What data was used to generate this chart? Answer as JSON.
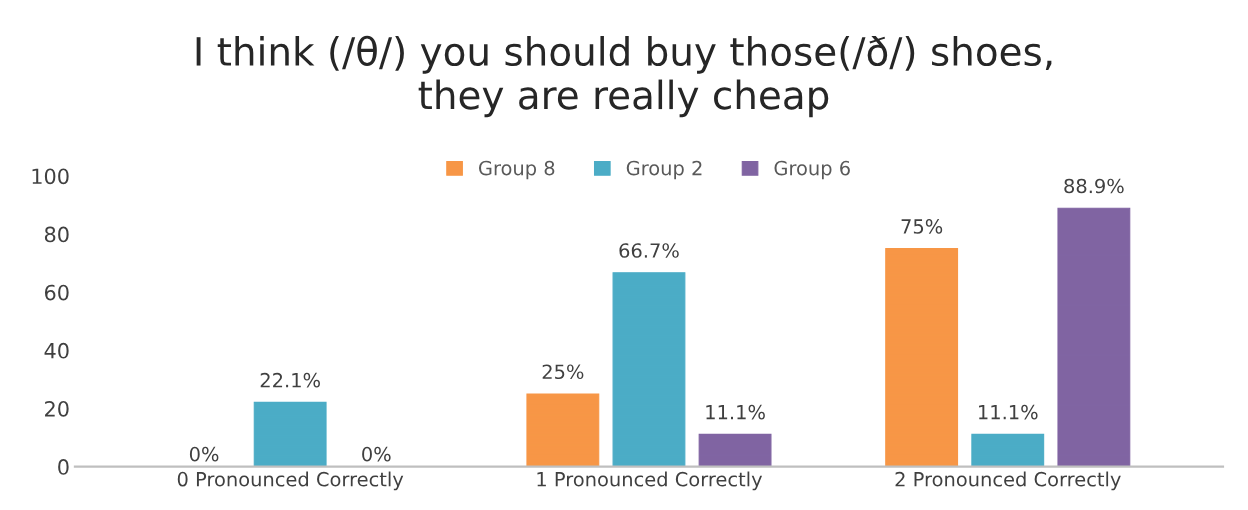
{
  "chart_data": {
    "type": "bar",
    "title": "I think (/θ/) you should buy those(/ð/) shoes,\nthey are really cheap",
    "categories": [
      "0 Pronounced Correctly",
      "1 Pronounced Correctly",
      "2 Pronounced Correctly"
    ],
    "series": [
      {
        "name": "Group 8",
        "color": "#f79646",
        "values": [
          0,
          25,
          75
        ],
        "value_labels": [
          "0%",
          "25%",
          "75%"
        ]
      },
      {
        "name": "Group 2",
        "color": "#4bacc6",
        "values": [
          22.1,
          66.7,
          11.1
        ],
        "value_labels": [
          "22.1%",
          "66.7%",
          "11.1%"
        ]
      },
      {
        "name": "Group 6",
        "color": "#8064a2",
        "values": [
          0,
          11.1,
          88.9
        ],
        "value_labels": [
          "0%",
          "11.1%",
          "88.9%"
        ]
      }
    ],
    "ylim": [
      0,
      100
    ],
    "yticks": [
      0,
      20,
      40,
      60,
      80,
      100
    ],
    "grid": false,
    "legend": "top"
  }
}
